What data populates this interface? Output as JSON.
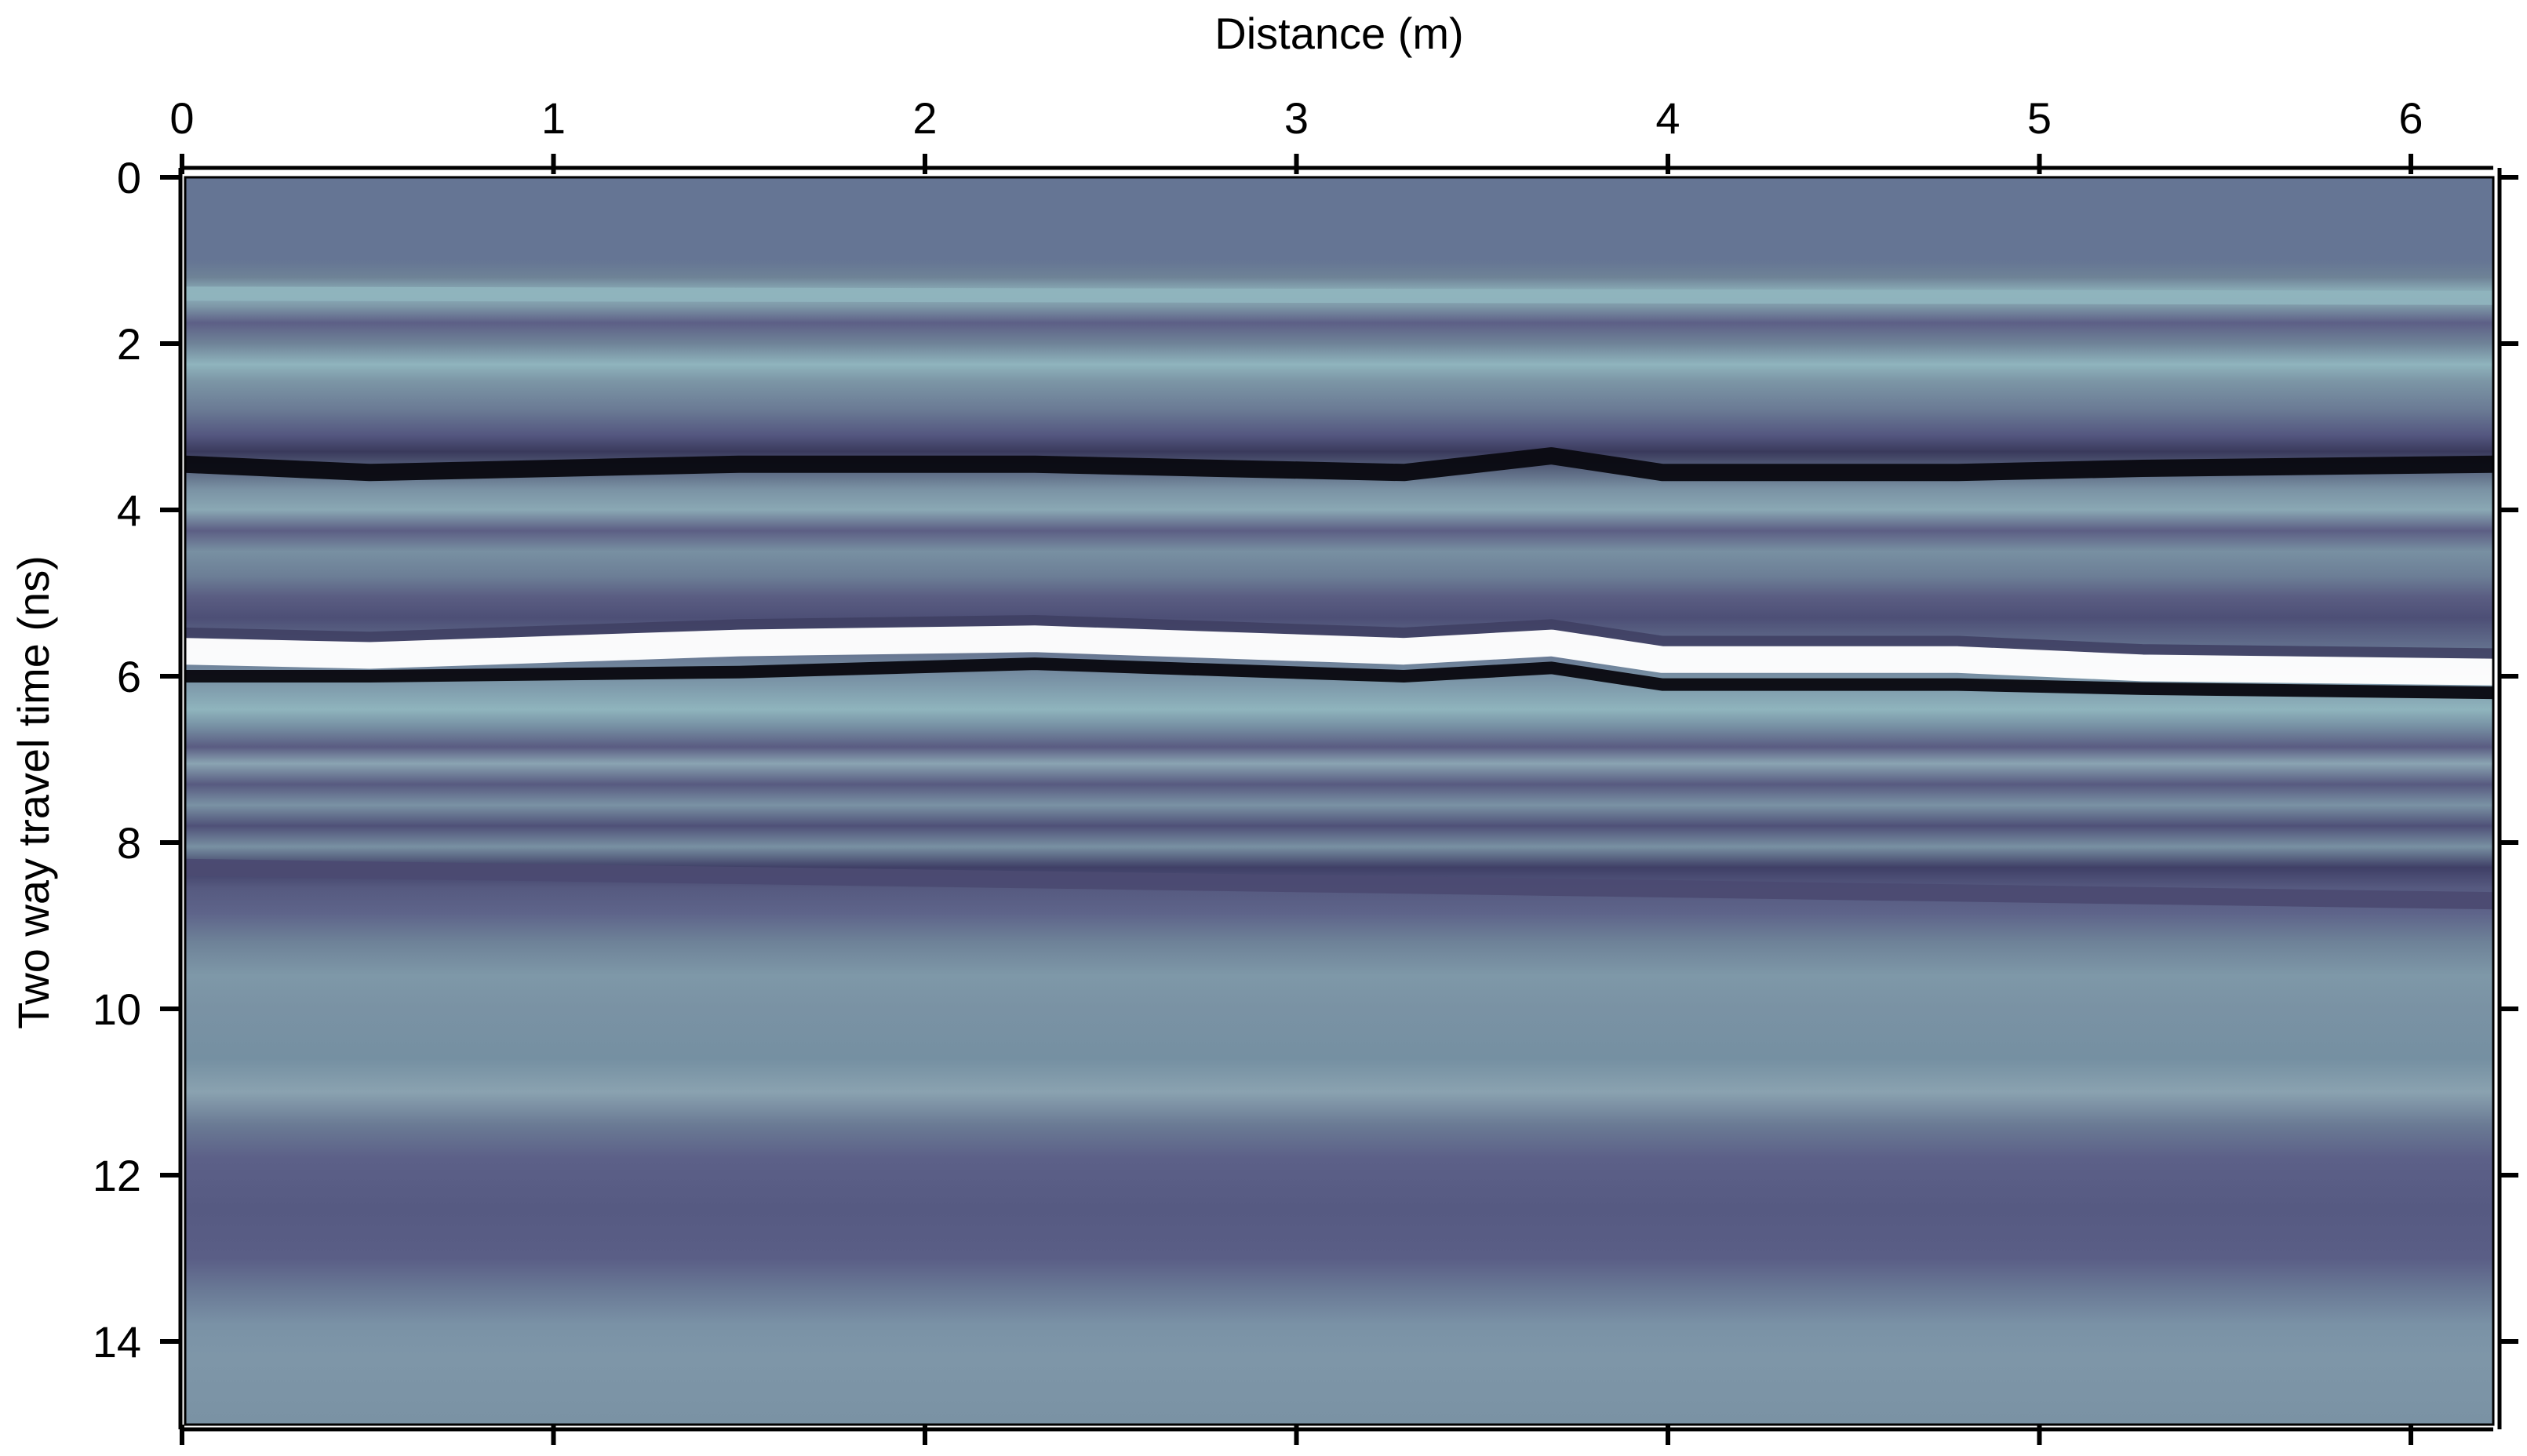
{
  "chart_data": {
    "type": "heatmap",
    "subtype": "radargram",
    "title": "",
    "xlabel": "Distance (m)",
    "ylabel": "Two way travel time (ns)",
    "x_axis_position": "top",
    "y_axis_inverted": true,
    "xlim": [
      0,
      6.25
    ],
    "ylim": [
      0,
      15
    ],
    "x_ticks": [
      0,
      1,
      2,
      3,
      4,
      5,
      6
    ],
    "y_ticks": [
      0,
      2,
      4,
      6,
      8,
      10,
      12,
      14
    ],
    "grid": false,
    "colormap": {
      "description": "grayscale-blue; negative amplitude dark, positive amplitude light",
      "background": "#657594",
      "dark": "#0a0a12",
      "light": "#ffffff",
      "pale_band": "#8fb4bd",
      "deep_band": "#4b4a72"
    },
    "reflectors": [
      {
        "name": "strong negative reflector",
        "time_ns": [
          [
            0,
            3.45
          ],
          [
            0.5,
            3.55
          ],
          [
            1.5,
            3.45
          ],
          [
            2.3,
            3.45
          ],
          [
            3.3,
            3.55
          ],
          [
            3.7,
            3.35
          ],
          [
            4.0,
            3.55
          ],
          [
            4.8,
            3.55
          ],
          [
            5.3,
            3.5
          ],
          [
            6.25,
            3.45
          ]
        ]
      },
      {
        "name": "strong positive reflector",
        "time_ns": [
          [
            0,
            5.7
          ],
          [
            0.5,
            5.75
          ],
          [
            1.5,
            5.6
          ],
          [
            2.3,
            5.55
          ],
          [
            3.3,
            5.7
          ],
          [
            3.7,
            5.6
          ],
          [
            4.0,
            5.8
          ],
          [
            4.8,
            5.8
          ],
          [
            5.3,
            5.9
          ],
          [
            6.25,
            5.95
          ]
        ]
      },
      {
        "name": "negative reflector below positive",
        "time_ns": [
          [
            0,
            6.0
          ],
          [
            0.5,
            6.0
          ],
          [
            1.5,
            5.95
          ],
          [
            2.3,
            5.85
          ],
          [
            3.3,
            6.0
          ],
          [
            3.7,
            5.9
          ],
          [
            4.0,
            6.1
          ],
          [
            4.8,
            6.1
          ],
          [
            5.3,
            6.15
          ],
          [
            6.25,
            6.2
          ]
        ]
      },
      {
        "name": "shallow pale band",
        "time_ns": [
          [
            0,
            1.4
          ],
          [
            6.25,
            1.45
          ]
        ]
      },
      {
        "name": "deep dark band",
        "time_ns": [
          [
            0,
            8.3
          ],
          [
            6.25,
            8.7
          ]
        ]
      }
    ]
  }
}
